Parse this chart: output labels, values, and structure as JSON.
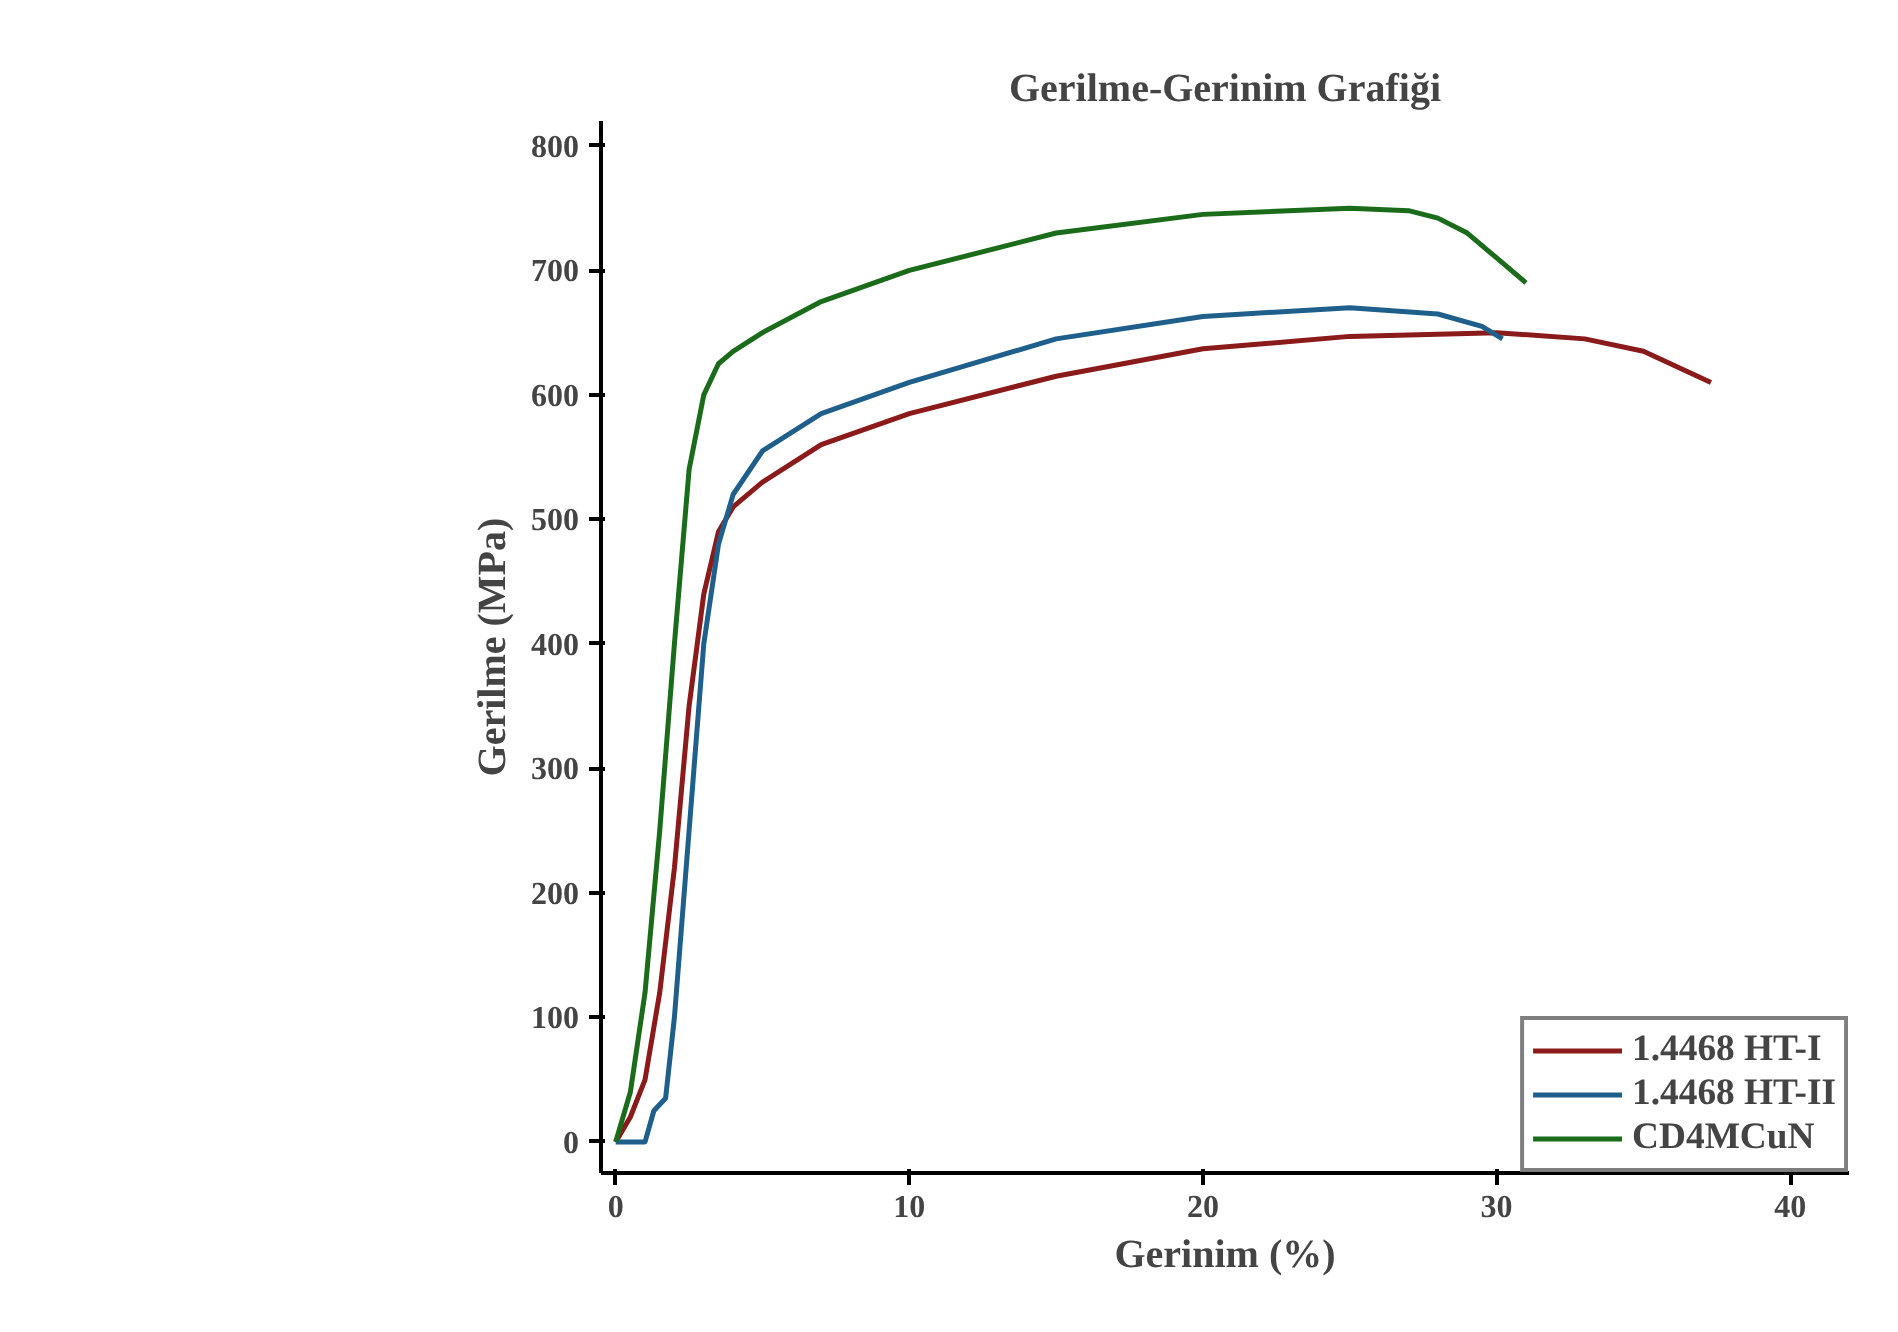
{
  "chart_data": {
    "type": "line",
    "title": "Gerilme-Gerinim Grafiği",
    "xlabel": "Gerinim (%)",
    "ylabel": "Gerilme (MPa)",
    "xlim": [
      -0.5,
      42
    ],
    "ylim": [
      -25,
      820
    ],
    "xticks": [
      0,
      10,
      20,
      30,
      40
    ],
    "yticks": [
      0,
      100,
      200,
      300,
      400,
      500,
      600,
      700,
      800
    ],
    "grid": false,
    "legend": "bottom right",
    "marker": "none",
    "line_style": "solid",
    "series": [
      {
        "name": "1.4468 HT-I",
        "color": "#8b1a1a",
        "x": [
          0,
          0.5,
          1,
          1.5,
          2,
          2.5,
          3,
          3.5,
          4,
          5,
          7,
          10,
          15,
          20,
          25,
          30,
          33,
          35,
          37.3
        ],
        "values": [
          0,
          20,
          50,
          120,
          220,
          350,
          440,
          490,
          510,
          530,
          560,
          585,
          615,
          637,
          647,
          650,
          645,
          635,
          610
        ]
      },
      {
        "name": "1.4468 HT-II",
        "color": "#1f5f8b",
        "x": [
          0,
          1,
          1.3,
          1.7,
          2,
          2.5,
          3,
          3.5,
          4,
          5,
          7,
          10,
          15,
          20,
          25,
          28,
          29.5,
          30.2
        ],
        "values": [
          0,
          0,
          25,
          35,
          100,
          250,
          400,
          480,
          520,
          555,
          585,
          610,
          645,
          663,
          670,
          665,
          655,
          645
        ]
      },
      {
        "name": "CD4MCuN",
        "color": "#1a6b1a",
        "x": [
          0,
          0.5,
          1,
          1.5,
          2,
          2.5,
          3,
          3.5,
          4,
          5,
          7,
          10,
          15,
          20,
          25,
          27,
          28,
          29,
          30,
          31
        ],
        "values": [
          0,
          40,
          120,
          250,
          400,
          540,
          600,
          625,
          635,
          650,
          675,
          700,
          730,
          745,
          750,
          748,
          742,
          730,
          710,
          690
        ]
      }
    ]
  }
}
